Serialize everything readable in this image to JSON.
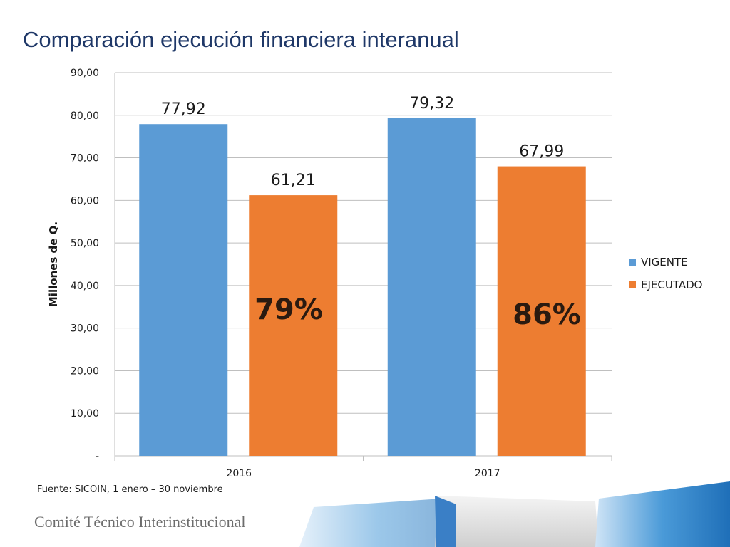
{
  "slide": {
    "title": "Comparación ejecución financiera interanual",
    "source": "Fuente: SICOIN, 1 enero – 30 noviembre",
    "footer_org": "Comité Técnico Interinstitucional"
  },
  "colors": {
    "vigente": "#5b9bd5",
    "ejecutado": "#ed7d31",
    "title": "#1f3868",
    "grid": "#bfbfbf"
  },
  "chart_data": {
    "type": "bar",
    "title": "",
    "xlabel": "",
    "ylabel": "Millones de Q.",
    "categories": [
      "2016",
      "2017"
    ],
    "series": [
      {
        "name": "VIGENTE",
        "values": [
          77.92,
          79.32
        ],
        "labels": [
          "77,92",
          "79,32"
        ]
      },
      {
        "name": "EJECUTADO",
        "values": [
          61.21,
          67.99
        ],
        "labels": [
          "61,21",
          "67,99"
        ]
      }
    ],
    "ylim": [
      0,
      90
    ],
    "yticks": [
      0,
      10,
      20,
      30,
      40,
      50,
      60,
      70,
      80,
      90
    ],
    "ytick_labels": [
      "-",
      "10,00",
      "20,00",
      "30,00",
      "40,00",
      "50,00",
      "60,00",
      "70,00",
      "80,00",
      "90,00"
    ],
    "annotations": [
      "79%",
      "86%"
    ],
    "grid": true,
    "legend": "right"
  }
}
